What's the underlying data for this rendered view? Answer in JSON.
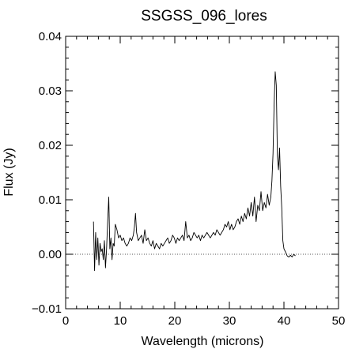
{
  "chart_data": {
    "type": "line",
    "title": "SSGSS_096_lores",
    "xlabel": "Wavelength (microns)",
    "ylabel": "Flux (Jy)",
    "xlim": [
      0,
      50
    ],
    "ylim": [
      -0.01,
      0.04
    ],
    "xticks": [
      0,
      10,
      20,
      30,
      40,
      50
    ],
    "xtick_labels": [
      "0",
      "10",
      "20",
      "30",
      "40",
      "50"
    ],
    "yticks": [
      -0.01,
      0.0,
      0.01,
      0.02,
      0.03,
      0.04
    ],
    "ytick_labels": [
      "−0.01",
      "0.00",
      "0.01",
      "0.02",
      "0.03",
      "0.04"
    ],
    "reference_line": {
      "y": 0.0,
      "style": "dotted"
    },
    "grid": false,
    "series": [
      {
        "x": [
          5.1,
          5.3,
          5.5,
          5.7,
          5.9,
          6.1,
          6.3,
          6.5,
          6.7,
          6.9,
          7.1,
          7.3,
          7.5,
          7.7,
          7.9,
          8.1,
          8.3,
          8.5,
          8.7,
          8.9,
          9.1,
          9.4,
          9.7,
          10.0,
          10.3,
          10.6,
          10.9,
          11.2,
          11.5,
          11.8,
          12.1,
          12.4,
          12.6,
          12.8,
          13.0,
          13.3,
          13.6,
          13.9,
          14.2,
          14.5,
          14.8,
          15.1,
          15.4,
          15.7,
          16.0,
          16.3,
          16.6,
          16.9,
          17.2,
          17.5,
          17.8,
          18.1,
          18.4,
          18.7,
          19.0,
          19.3,
          19.6,
          19.9,
          20.2,
          20.5,
          20.8,
          21.1,
          21.4,
          21.7,
          22.0,
          22.3,
          22.6,
          22.9,
          23.2,
          23.5,
          23.8,
          24.1,
          24.4,
          24.7,
          25.0,
          25.3,
          25.6,
          25.9,
          26.2,
          26.5,
          26.8,
          27.1,
          27.4,
          27.7,
          28.0,
          28.3,
          28.6,
          28.9,
          29.2,
          29.5,
          29.8,
          30.1,
          30.4,
          30.7,
          31.0,
          31.3,
          31.6,
          31.9,
          32.2,
          32.5,
          32.8,
          33.1,
          33.4,
          33.7,
          34.0,
          34.3,
          34.6,
          34.9,
          35.2,
          35.5,
          35.8,
          36.1,
          36.4,
          36.7,
          37.0,
          37.3,
          37.6,
          37.8,
          38.0,
          38.2,
          38.4,
          38.6,
          38.8,
          39.0,
          39.2,
          39.4,
          39.6,
          39.8,
          40.0,
          40.3,
          40.6,
          40.9,
          41.2,
          41.5,
          41.8,
          42.1
        ],
        "y": [
          0.006,
          -0.003,
          0.004,
          -0.001,
          0.003,
          -0.002,
          0.002,
          0.0005,
          0.001,
          -0.001,
          0.0025,
          -0.0025,
          0.001,
          0.006,
          0.0105,
          0.001,
          0.003,
          -0.001,
          0.002,
          0.0015,
          0.0055,
          0.0045,
          0.003,
          0.0035,
          0.0025,
          0.003,
          0.002,
          0.0015,
          0.002,
          0.003,
          0.0025,
          0.0035,
          0.005,
          0.0075,
          0.004,
          0.0025,
          0.003,
          0.0035,
          0.002,
          0.0045,
          0.0025,
          0.003,
          0.002,
          0.0015,
          0.0025,
          0.001,
          0.002,
          0.0015,
          0.001,
          0.002,
          0.0015,
          0.002,
          0.0025,
          0.003,
          0.002,
          0.0025,
          0.0035,
          0.003,
          0.002,
          0.003,
          0.0025,
          0.003,
          0.0035,
          0.0025,
          0.006,
          0.003,
          0.0035,
          0.0025,
          0.003,
          0.004,
          0.0035,
          0.003,
          0.0035,
          0.0025,
          0.0035,
          0.003,
          0.0035,
          0.004,
          0.0035,
          0.003,
          0.0035,
          0.004,
          0.0035,
          0.0045,
          0.004,
          0.0035,
          0.004,
          0.0045,
          0.0055,
          0.005,
          0.006,
          0.0045,
          0.0055,
          0.0045,
          0.005,
          0.006,
          0.0065,
          0.0055,
          0.007,
          0.006,
          0.0075,
          0.0065,
          0.0085,
          0.007,
          0.0095,
          0.007,
          0.0105,
          0.006,
          0.009,
          0.008,
          0.0115,
          0.008,
          0.0095,
          0.0085,
          0.011,
          0.009,
          0.0105,
          0.0135,
          0.0185,
          0.0275,
          0.0335,
          0.031,
          0.018,
          0.0155,
          0.0195,
          0.0125,
          0.0085,
          0.0025,
          0.001,
          0.0004,
          -0.0003,
          -0.0005,
          -0.0002,
          -0.0005,
          0.0,
          -0.0003
        ]
      }
    ]
  }
}
